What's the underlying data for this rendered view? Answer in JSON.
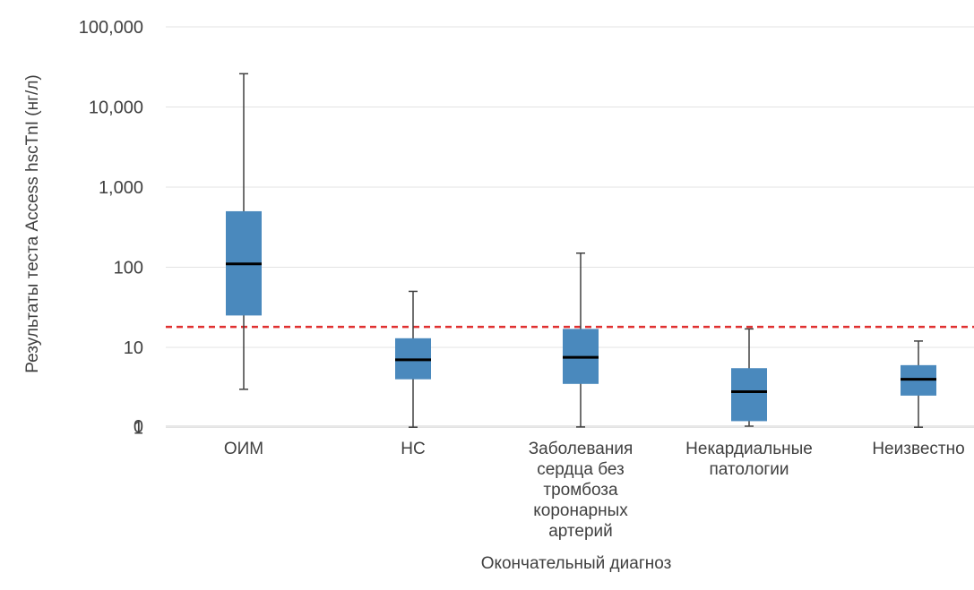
{
  "chart_data": {
    "type": "box",
    "title": "",
    "xlabel": "Окончательный диагноз",
    "ylabel": "Результаты теста Access hscTnI (нг/л)",
    "y_scale": "log",
    "y_ticks": [
      {
        "value": 0,
        "label": "0"
      },
      {
        "value": 1,
        "label": "1"
      },
      {
        "value": 10,
        "label": "10"
      },
      {
        "value": 100,
        "label": "100"
      },
      {
        "value": 1000,
        "label": "1,000"
      },
      {
        "value": 10000,
        "label": "10,000"
      },
      {
        "value": 100000,
        "label": "100,000"
      }
    ],
    "grid": true,
    "box_color": "#4a89bd",
    "median_color": "#000000",
    "whisker_color": "#404040",
    "reference_line": {
      "value": 18,
      "color": "#e03030",
      "style": "dashed"
    },
    "categories": [
      [
        "ОИМ"
      ],
      [
        "НС"
      ],
      [
        "Заболевания",
        "сердца без",
        "тромбоза",
        "коронарных",
        "артерий"
      ],
      [
        "Некардиальные",
        "патологии"
      ],
      [
        "Неизвестно"
      ]
    ],
    "boxes": [
      {
        "min": 3,
        "q1": 25,
        "median": 110,
        "q3": 500,
        "max": 26000
      },
      {
        "min": 0.8,
        "q1": 4,
        "median": 7,
        "q3": 13,
        "max": 50
      },
      {
        "min": 0.6,
        "q1": 3.5,
        "median": 7.5,
        "q3": 17,
        "max": 150
      },
      {
        "min": 0,
        "q1": 1.2,
        "median": 2.8,
        "q3": 5.5,
        "max": 17
      },
      {
        "min": 0.8,
        "q1": 2.5,
        "median": 4,
        "q3": 6,
        "max": 12
      }
    ]
  }
}
